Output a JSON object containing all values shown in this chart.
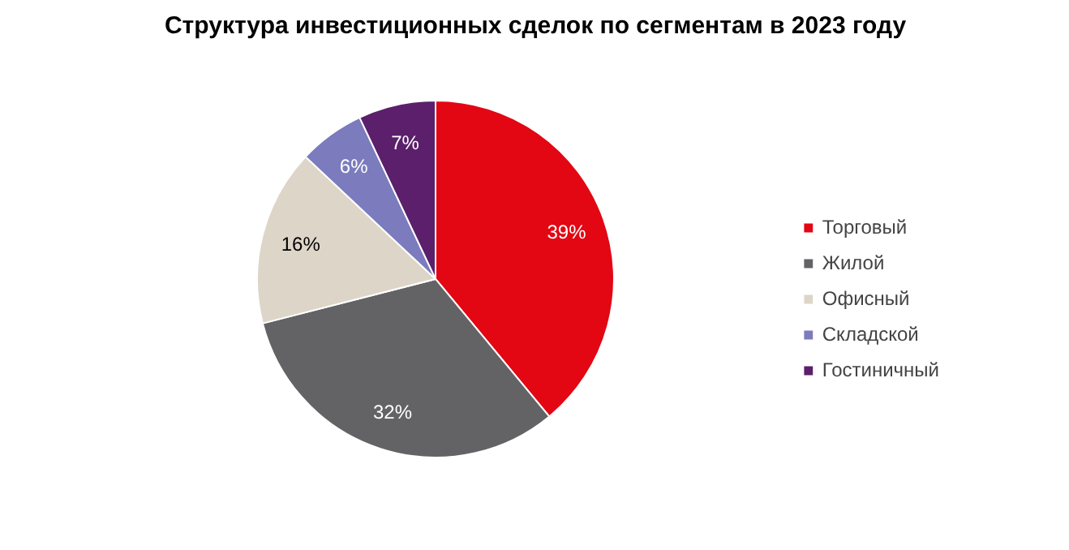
{
  "chart_data": {
    "type": "pie",
    "title": "Структура инвестиционных сделок по сегментам в 2023 году",
    "categories": [
      "Торговый",
      "Жилой",
      "Офисный",
      "Складской",
      "Гостиничный"
    ],
    "values": [
      39,
      32,
      16,
      6,
      7
    ],
    "colors": [
      "#e30613",
      "#636366",
      "#ddd5c8",
      "#7b7bbd",
      "#5b1f6b"
    ],
    "value_labels": [
      "39%",
      "32%",
      "16%",
      "6%",
      "7%"
    ],
    "legend": "right"
  }
}
